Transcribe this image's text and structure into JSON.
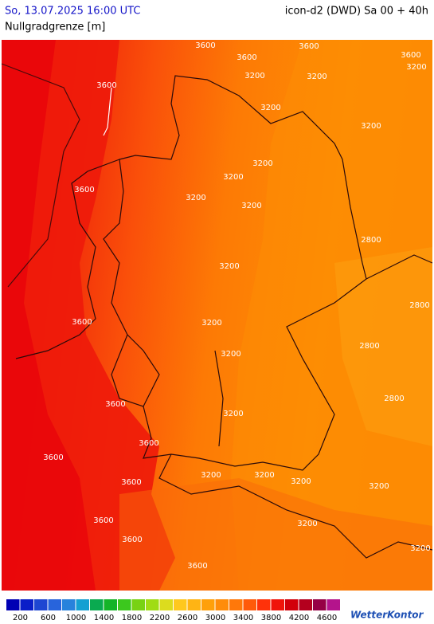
{
  "header": {
    "date": "So, 13.07.2025 16:00 UTC",
    "model": "icon-d2 (DWD) Sa 00 + 40h",
    "parameter": "Nullgradgrenze [m]"
  },
  "map": {
    "contour_labels": [
      3600,
      3600,
      3600,
      3600,
      3200,
      3600,
      3200,
      3200,
      3200,
      3200,
      3200,
      3200,
      3600,
      3200,
      3200,
      2800,
      3200,
      2800,
      3600,
      3200,
      3200,
      2800,
      2800,
      3600,
      3200,
      3600,
      3600,
      3600,
      3200,
      3200,
      3200,
      3200,
      3600,
      3200,
      3600,
      3200,
      3600
    ]
  },
  "legend": {
    "lim": [
      0,
      4800
    ],
    "ticks": [
      200,
      600,
      1000,
      1400,
      1800,
      2200,
      2600,
      3000,
      3400,
      3800,
      4200,
      4600
    ],
    "colors": [
      "#0000b4",
      "#0a1ec8",
      "#1e46d2",
      "#2864dc",
      "#2882dc",
      "#14a0d2",
      "#0aaa50",
      "#14b428",
      "#3cc81e",
      "#78d214",
      "#a0dc14",
      "#dcdc1e",
      "#ffc81e",
      "#ffb414",
      "#ffa00a",
      "#ff8c0a",
      "#ff780a",
      "#ff5a0a",
      "#ff320a",
      "#f0140a",
      "#d2000a",
      "#b4001e",
      "#960046",
      "#b4148c"
    ]
  },
  "logo": "WetterKontor"
}
